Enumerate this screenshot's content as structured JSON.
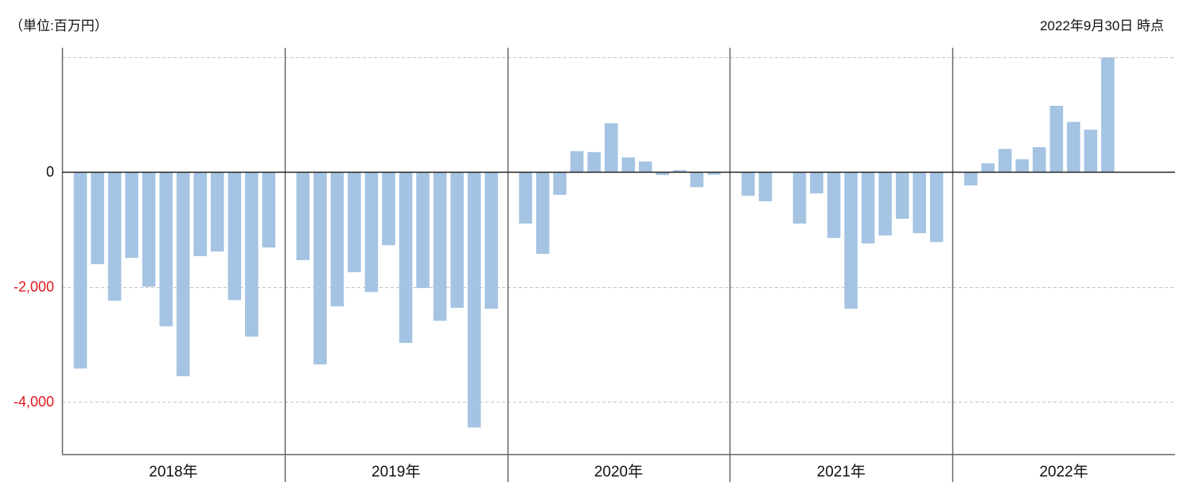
{
  "colors": {
    "bar": "#a5c4e3",
    "zero_line": "#222222",
    "axis": "#666666",
    "grid": "#c4c4c4",
    "negative_label": "#e0191e",
    "text": "#111111"
  },
  "chart_data": {
    "type": "bar",
    "title": "",
    "unit_label": "（単位:百万円）",
    "as_of": "2022年9月30日 時点",
    "xlabel": "",
    "ylabel": "",
    "categories": [
      "2018年",
      "2019年",
      "2020年",
      "2021年",
      "2022年"
    ],
    "values": [
      [
        -3420,
        -1605,
        -2240,
        -1495,
        -1995,
        -2685,
        -3555,
        -1465,
        -1385,
        -2230,
        -2865,
        -1315
      ],
      [
        -1535,
        -3350,
        -2340,
        -1745,
        -2090,
        -1275,
        -2975,
        -2020,
        -2590,
        -2365,
        -4445,
        -2380
      ],
      [
        -900,
        -1425,
        -400,
        360,
        345,
        845,
        250,
        180,
        -55,
        30,
        -265,
        -50
      ],
      [
        -415,
        -510,
        0,
        -900,
        -375,
        -1150,
        -2380,
        -1245,
        -1105,
        -815,
        -1065,
        -1220
      ],
      [
        -235,
        150,
        400,
        220,
        430,
        1150,
        870,
        735,
        1990
      ]
    ],
    "yticks": [
      {
        "value": 0,
        "label": "0"
      },
      {
        "value": -2000,
        "label": "-2,000"
      },
      {
        "value": -4000,
        "label": "-4,000"
      }
    ],
    "gridlines": [
      2000,
      -2000,
      -4000
    ],
    "grid": true,
    "ylim": [
      -4910,
      2160
    ],
    "legend": "none"
  }
}
